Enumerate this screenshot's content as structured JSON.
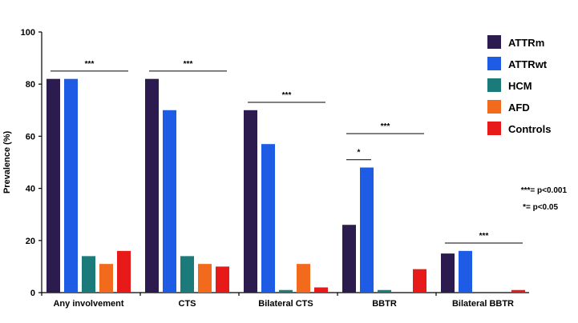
{
  "chart_data": {
    "type": "bar",
    "title": "",
    "xlabel": "",
    "ylabel": "Prevalence (%)",
    "ylim": [
      0,
      100
    ],
    "yticks": [
      0,
      20,
      40,
      60,
      80,
      100
    ],
    "grid": false,
    "legend_position": "top-right",
    "categories": [
      "Any involvement",
      "CTS",
      "Bilateral CTS",
      "BBTR",
      "Bilateral BBTR"
    ],
    "series": [
      {
        "name": "ATTRm",
        "color": "#2b1b4f",
        "values": [
          82,
          82,
          70,
          26,
          15
        ]
      },
      {
        "name": "ATTRwt",
        "color": "#1f5ce6",
        "values": [
          82,
          70,
          57,
          48,
          16
        ]
      },
      {
        "name": "HCM",
        "color": "#1b7a7a",
        "values": [
          14,
          14,
          1,
          1,
          0
        ]
      },
      {
        "name": "AFD",
        "color": "#f26a1b",
        "values": [
          11,
          11,
          11,
          0,
          0
        ]
      },
      {
        "name": "Controls",
        "color": "#e81919",
        "values": [
          16,
          10,
          2,
          9,
          1
        ]
      }
    ],
    "significance": [
      {
        "category": 0,
        "from_series": 0,
        "to_series": 4,
        "y": 85,
        "label": "***"
      },
      {
        "category": 1,
        "from_series": 0,
        "to_series": 4,
        "y": 85,
        "label": "***"
      },
      {
        "category": 2,
        "from_series": 0,
        "to_series": 4,
        "y": 73,
        "label": "***"
      },
      {
        "category": 3,
        "from_series": 0,
        "to_series": 1,
        "y": 51,
        "label": "*"
      },
      {
        "category": 3,
        "from_series": 0,
        "to_series": 4,
        "y": 61,
        "label": "***"
      },
      {
        "category": 4,
        "from_series": 0,
        "to_series": 4,
        "y": 19,
        "label": "***"
      }
    ],
    "notes": [
      "***= p<0.001",
      "*= p<0.05"
    ]
  }
}
